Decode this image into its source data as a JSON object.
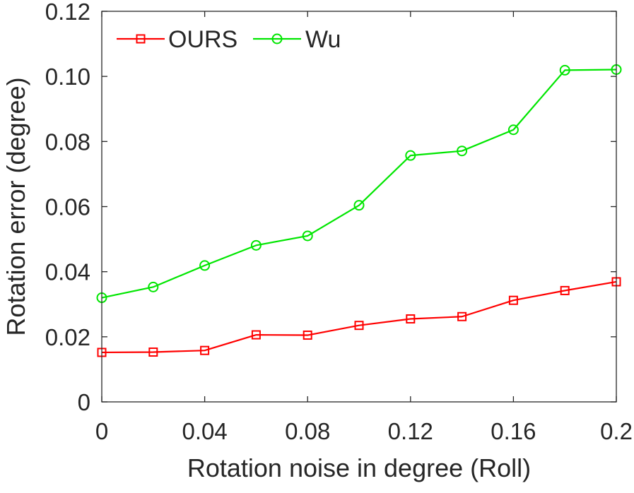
{
  "chart_data": {
    "type": "line",
    "xlabel": "Rotation noise in degree (Roll)",
    "ylabel": "Rotation error (degree)",
    "xlim": [
      0,
      0.2
    ],
    "ylim": [
      0,
      0.12
    ],
    "x_ticks": [
      0,
      0.04,
      0.08,
      0.12,
      0.16,
      0.2
    ],
    "x_tick_labels": [
      "0",
      "0.04",
      "0.08",
      "0.12",
      "0.16",
      "0.2"
    ],
    "y_ticks": [
      0,
      0.02,
      0.04,
      0.06,
      0.08,
      0.1,
      0.12
    ],
    "y_tick_labels": [
      "0",
      "0.02",
      "0.04",
      "0.06",
      "0.08",
      "0.10",
      "0.12"
    ],
    "grid": false,
    "legend_position": "top-left",
    "x": [
      0,
      0.02,
      0.04,
      0.06,
      0.08,
      0.1,
      0.12,
      0.14,
      0.16,
      0.18,
      0.2
    ],
    "series": [
      {
        "name": "OURS",
        "color": "#ff0000",
        "marker": "square",
        "values": [
          0.0152,
          0.0153,
          0.0158,
          0.0206,
          0.0205,
          0.0235,
          0.0255,
          0.0262,
          0.0312,
          0.0342,
          0.0369
        ]
      },
      {
        "name": "Wu",
        "color": "#00e600",
        "marker": "circle",
        "values": [
          0.032,
          0.0353,
          0.0419,
          0.0481,
          0.051,
          0.0604,
          0.0757,
          0.0771,
          0.0836,
          0.1019,
          0.1021
        ]
      }
    ]
  }
}
